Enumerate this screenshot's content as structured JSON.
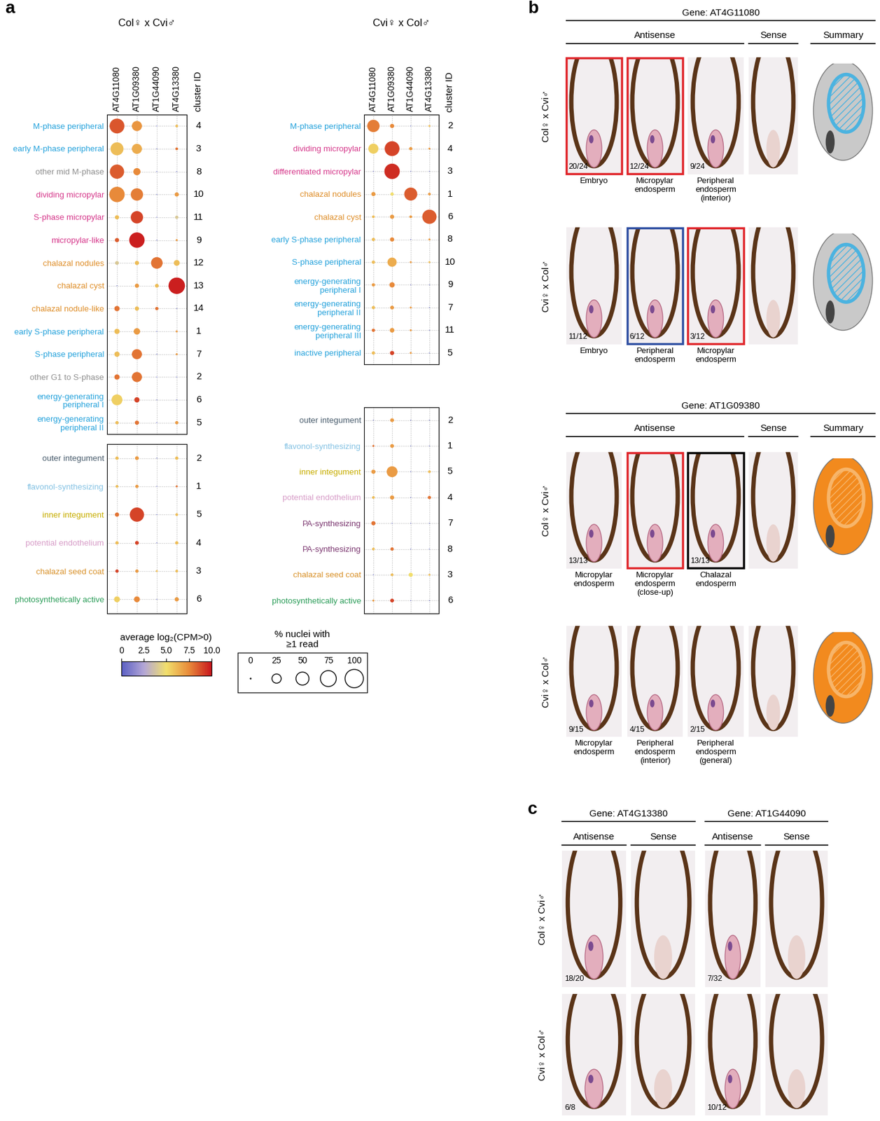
{
  "chart_data": [
    {
      "type": "dotplot",
      "title": "Col♀ x Cvi♂",
      "id_label": "cluster ID",
      "grid": true,
      "genes": [
        "AT4G11080",
        "AT1G09380",
        "AT1G44090",
        "AT4G13380"
      ],
      "groups": [
        {
          "categories": [
            "M-phase peripheral",
            "early M-phase peripheral",
            "other mid M-phase",
            "dividing micropylar",
            "S-phase micropylar",
            "micropylar-like",
            "chalazal nodules",
            "chalazal cyst",
            "chalazal nodule-like",
            "early S-phase peripheral",
            "S-phase peripheral",
            "other G1 to S-phase",
            "energy-generating peripheral I",
            "energy-generating peripheral II"
          ],
          "cluster_ids": [
            4,
            3,
            8,
            10,
            11,
            9,
            12,
            13,
            14,
            1,
            7,
            2,
            6,
            5
          ],
          "colors": [
            "#27a3dc",
            "#27a3dc",
            "#8f8f8f",
            "#d63a8c",
            "#d63a8c",
            "#d63a8c",
            "#df8f2b",
            "#df8f2b",
            "#df8f2b",
            "#27a3dc",
            "#27a3dc",
            "#8f8f8f",
            "#27a3dc",
            "#27a3dc"
          ],
          "values": [
            [
              8.6,
              7.2,
              0,
              6
            ],
            [
              6,
              6.5,
              0,
              8
            ],
            [
              8.5,
              7.5,
              0,
              0
            ],
            [
              7.5,
              7.8,
              0,
              7
            ],
            [
              6,
              9,
              0,
              4
            ],
            [
              8.5,
              9.8,
              0,
              7
            ],
            [
              4,
              6,
              8,
              6
            ],
            [
              0,
              7,
              6,
              9.8
            ],
            [
              8,
              6,
              8,
              0
            ],
            [
              6,
              7,
              0,
              7
            ],
            [
              6,
              8,
              0,
              7
            ],
            [
              8,
              8,
              0,
              0
            ],
            [
              5.5,
              9,
              0,
              0
            ],
            [
              6,
              8,
              0,
              7
            ]
          ],
          "pct_nuclei": [
            [
              65,
              30,
              0,
              2
            ],
            [
              50,
              30,
              0,
              2
            ],
            [
              60,
              15,
              0,
              0
            ],
            [
              70,
              45,
              0,
              5
            ],
            [
              5,
              45,
              0,
              3
            ],
            [
              5,
              70,
              0,
              1
            ],
            [
              4,
              5,
              40,
              10
            ],
            [
              0,
              5,
              4,
              80
            ],
            [
              8,
              5,
              3,
              0
            ],
            [
              8,
              12,
              0,
              1
            ],
            [
              8,
              30,
              0,
              1
            ],
            [
              8,
              30,
              0,
              0
            ],
            [
              35,
              8,
              0,
              0
            ],
            [
              3,
              5,
              0,
              3
            ]
          ]
        },
        {
          "categories": [
            "outer integument",
            "flavonol-synthesizing",
            "inner integument",
            "potential endothelium",
            "chalazal seed coat",
            "photosynthetically active"
          ],
          "cluster_ids": [
            2,
            1,
            5,
            4,
            3,
            6
          ],
          "colors": [
            "#4d6070",
            "#86c3e4",
            "#c7ad00",
            "#d89fc9",
            "#d9922b",
            "#2e9e5b"
          ],
          "values": [
            [
              6,
              7,
              0,
              6
            ],
            [
              6,
              7,
              0,
              8
            ],
            [
              8,
              9,
              0,
              6
            ],
            [
              6,
              9,
              0,
              6
            ],
            [
              9,
              7,
              6,
              6
            ],
            [
              5.5,
              7.5,
              0,
              7
            ]
          ],
          "pct_nuclei": [
            [
              3,
              4,
              0,
              3
            ],
            [
              2,
              3,
              0,
              1
            ],
            [
              5,
              60,
              0,
              2
            ],
            [
              3,
              4,
              0,
              3
            ],
            [
              3,
              3,
              1,
              2
            ],
            [
              10,
              10,
              0,
              5
            ]
          ]
        }
      ]
    },
    {
      "type": "dotplot",
      "title": "Cvi♀ x Col♂",
      "id_label": "cluster ID",
      "grid": true,
      "genes": [
        "AT4G11080",
        "AT1G09380",
        "AT1G44090",
        "AT4G13380"
      ],
      "groups": [
        {
          "categories": [
            "M-phase peripheral",
            "dividing micropylar",
            "differentiated micropylar",
            "chalazal nodules",
            "chalazal cyst",
            "early S-phase peripheral",
            "S-phase peripheral",
            "energy-generating peripheral I",
            "energy-generating peripheral II",
            "energy-generating peripheral III",
            "inactive peripheral"
          ],
          "cluster_ids": [
            2,
            4,
            3,
            1,
            6,
            8,
            10,
            9,
            7,
            11,
            5
          ],
          "colors": [
            "#27a3dc",
            "#d63a8c",
            "#d63a8c",
            "#df8f2b",
            "#df8f2b",
            "#27a3dc",
            "#27a3dc",
            "#27a3dc",
            "#27a3dc",
            "#27a3dc",
            "#27a3dc"
          ],
          "values": [
            [
              7.8,
              7.5,
              0,
              6
            ],
            [
              5.5,
              9,
              7,
              7
            ],
            [
              0,
              9.5,
              0,
              0
            ],
            [
              7,
              5,
              8.5,
              7
            ],
            [
              6,
              7,
              7,
              8.5
            ],
            [
              6,
              7.5,
              0,
              7
            ],
            [
              6,
              6.5,
              7,
              6
            ],
            [
              7,
              7.5,
              0,
              0
            ],
            [
              6,
              7,
              7,
              0
            ],
            [
              8,
              7,
              7,
              0
            ],
            [
              6,
              9,
              7,
              0
            ]
          ],
          "pct_nuclei": [
            [
              45,
              5,
              0,
              1
            ],
            [
              30,
              65,
              3,
              1
            ],
            [
              0,
              70,
              0,
              0
            ],
            [
              5,
              3,
              50,
              2
            ],
            [
              2,
              5,
              2,
              60
            ],
            [
              3,
              5,
              0,
              1
            ],
            [
              3,
              25,
              1,
              1
            ],
            [
              3,
              8,
              0,
              0
            ],
            [
              3,
              4,
              1,
              0
            ],
            [
              3,
              6,
              1,
              0
            ],
            [
              3,
              5,
              1,
              0
            ]
          ]
        },
        {
          "categories": [
            "outer integument",
            "flavonol-synthesizing",
            "inner integument",
            "potential endothelium",
            "PA-synthesizing",
            "PA-synthesizing",
            "chalazal seed coat",
            "photosynthetically active"
          ],
          "cluster_ids": [
            2,
            1,
            5,
            4,
            7,
            8,
            3,
            6
          ],
          "colors": [
            "#4d6070",
            "#86c3e4",
            "#c7ad00",
            "#d89fc9",
            "#7d3a72",
            "#7d3a72",
            "#d9922b",
            "#2e9e5b"
          ],
          "values": [
            [
              0,
              7,
              0,
              0
            ],
            [
              8,
              7,
              0,
              0
            ],
            [
              7,
              7,
              0,
              6
            ],
            [
              6,
              7,
              0,
              8
            ],
            [
              8,
              0,
              0,
              0
            ],
            [
              6,
              8,
              0,
              0
            ],
            [
              0,
              6,
              5,
              6
            ],
            [
              7,
              9,
              0,
              0
            ]
          ],
          "pct_nuclei": [
            [
              0,
              4,
              0,
              0
            ],
            [
              1,
              4,
              0,
              0
            ],
            [
              5,
              35,
              0,
              2
            ],
            [
              2,
              5,
              0,
              3
            ],
            [
              5,
              0,
              0,
              0
            ],
            [
              2,
              3,
              0,
              0
            ],
            [
              0,
              2,
              5,
              1
            ],
            [
              1,
              4,
              0,
              0
            ]
          ]
        }
      ]
    }
  ],
  "colorbar": {
    "title": "average log₂(CPM>0)",
    "range": [
      0,
      10
    ],
    "ticks": [
      0,
      2.5,
      {
        "value": 5,
        "label": "5.0"
      },
      7.5,
      {
        "value": 10,
        "label": "10.0"
      }
    ]
  },
  "size_legend": {
    "title": "% nuclei with ≥1 read",
    "values": [
      0,
      25,
      50,
      75,
      100
    ]
  },
  "panel_labels": [
    "a",
    "b",
    "c"
  ],
  "panel_b": [
    {
      "title": "Gene: AT4G11080",
      "headers": [
        "Antisense",
        "Sense",
        "Summary"
      ],
      "rows": [
        {
          "label": "Col♀ x Cvi♂",
          "images": [
            {
              "count": "20/24",
              "caption": "Embryo",
              "color": "#e0262b"
            },
            {
              "count": "12/24",
              "caption": "Micropylar endosperm",
              "color": "#e0262b"
            },
            {
              "count": "9/24",
              "caption": "Peripheral endosperm (interior)"
            }
          ]
        },
        {
          "label": "Cvi♀ x Col♂",
          "images": [
            {
              "count": "11/12",
              "caption": "Embryo"
            },
            {
              "count": "6/12",
              "caption": "Peripheral endosperm",
              "color": "#2f4fa2"
            },
            {
              "count": "3/12",
              "caption": "Micropylar endosperm",
              "color": "#e0262b"
            }
          ]
        }
      ]
    },
    {
      "title": "Gene: AT1G09380",
      "headers": [
        "Antisense",
        "Sense",
        "Summary"
      ],
      "rows": [
        {
          "label": "Col♀ x Cvi♂",
          "images": [
            {
              "count": "13/13",
              "caption": "Micropylar endosperm"
            },
            {
              "caption": "Micropylar endosperm (close-up)",
              "color": "#e0262b"
            },
            {
              "count": "13/13",
              "caption": "Chalazal endosperm",
              "color": "#000000"
            }
          ]
        },
        {
          "label": "Cvi♀ x Col♂",
          "images": [
            {
              "count": "9/15",
              "caption": "Micropylar endosperm"
            },
            {
              "count": "4/15",
              "caption": "Peripheral endosperm (interior)"
            },
            {
              "count": "2/15",
              "caption": "Peripheral endosperm (general)"
            }
          ]
        }
      ]
    }
  ],
  "panel_c": {
    "rows": [
      "Col♀ x Cvi♂",
      "Cvi♀ x Col♂"
    ],
    "genes": [
      {
        "title": "Gene: AT4G13380",
        "headers": [
          "Antisense",
          "Sense"
        ],
        "counts": [
          "18/20",
          "6/8"
        ]
      },
      {
        "title": "Gene: AT1G44090",
        "headers": [
          "Antisense",
          "Sense"
        ],
        "counts": [
          "7/32",
          "10/12"
        ]
      }
    ]
  }
}
